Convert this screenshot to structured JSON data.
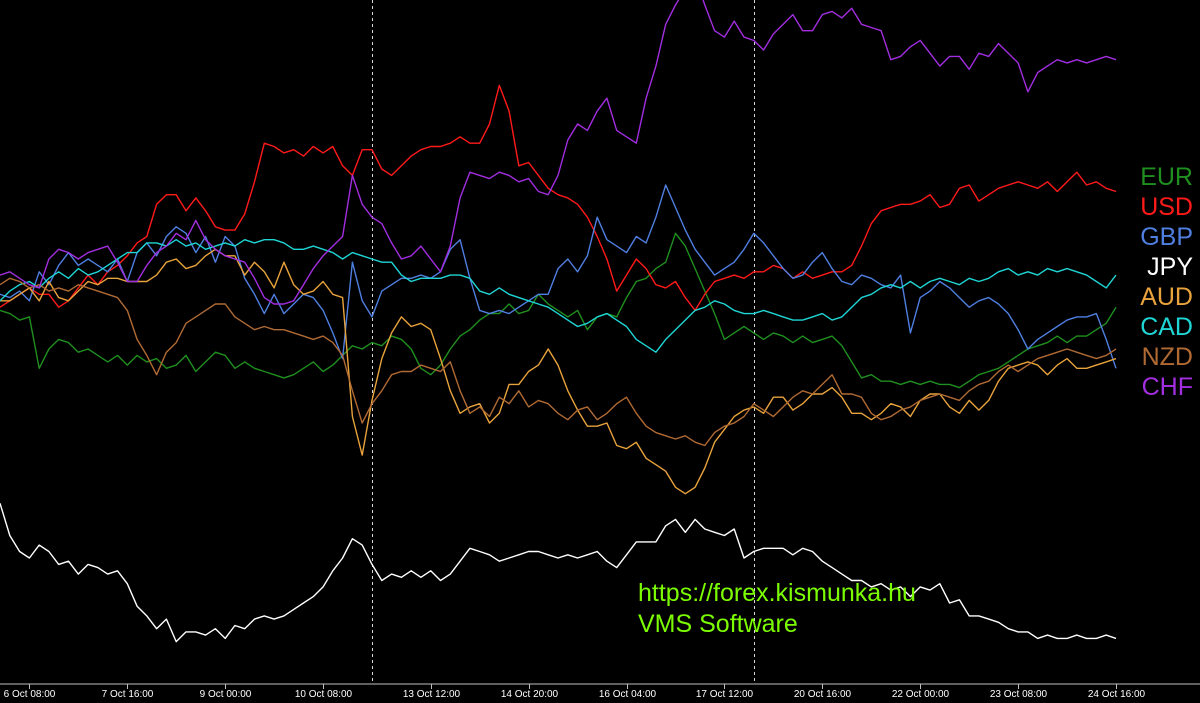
{
  "chart_data": {
    "type": "line",
    "title": "",
    "xlabel": "",
    "ylabel": "",
    "grid": false,
    "legend_position": "right",
    "background": "#000000",
    "x_ticks": [
      "6 Oct 08:00",
      "7 Oct 16:00",
      "9 Oct 00:00",
      "10 Oct 08:00",
      "13 Oct 12:00",
      "14 Oct 20:00",
      "16 Oct 04:00",
      "17 Oct 12:00",
      "20 Oct 16:00",
      "22 Oct 00:00",
      "23 Oct 08:00",
      "24 Oct 16:00"
    ],
    "x_tick_index": [
      3,
      13,
      23,
      33,
      44,
      54,
      64,
      74,
      84,
      94,
      104,
      114
    ],
    "period_separators_index": [
      38,
      77
    ],
    "y_range": [
      -1,
      1
    ],
    "x_count": 115,
    "series": [
      {
        "name": "EUR",
        "color": "#1f8f1f",
        "values": [
          0.05,
          0.04,
          0.02,
          0.03,
          -0.13,
          -0.07,
          -0.04,
          -0.05,
          -0.08,
          -0.07,
          -0.09,
          -0.11,
          -0.09,
          -0.12,
          -0.09,
          -0.11,
          -0.1,
          -0.13,
          -0.12,
          -0.09,
          -0.14,
          -0.11,
          -0.08,
          -0.09,
          -0.13,
          -0.11,
          -0.13,
          -0.14,
          -0.15,
          -0.16,
          -0.15,
          -0.13,
          -0.11,
          -0.14,
          -0.12,
          -0.09,
          -0.06,
          -0.07,
          -0.05,
          -0.06,
          -0.03,
          -0.04,
          -0.07,
          -0.13,
          -0.15,
          -0.12,
          -0.07,
          -0.03,
          -0.01,
          0.02,
          0.04,
          0.04,
          0.07,
          0.04,
          0.05,
          0.1,
          0.07,
          0.05,
          0.03,
          0.05,
          -0.01,
          0.03,
          0.04,
          0.03,
          0.09,
          0.14,
          0.15,
          0.18,
          0.2,
          0.29,
          0.25,
          0.18,
          0.11,
          0.04,
          -0.04,
          -0.02,
          0.0,
          -0.02,
          -0.04,
          -0.02,
          -0.03,
          -0.05,
          -0.03,
          -0.05,
          -0.04,
          -0.03,
          -0.06,
          -0.11,
          -0.16,
          -0.15,
          -0.17,
          -0.17,
          -0.18,
          -0.17,
          -0.18,
          -0.17,
          -0.18,
          -0.18,
          -0.19,
          -0.17,
          -0.15,
          -0.14,
          -0.13,
          -0.11,
          -0.09,
          -0.07,
          -0.06,
          -0.05,
          -0.03,
          -0.05,
          -0.03,
          -0.03,
          -0.01,
          0.01,
          0.06
        ]
      },
      {
        "name": "USD",
        "color": "#ff1a1a",
        "values": [
          0.06,
          0.08,
          0.1,
          0.12,
          0.1,
          0.1,
          0.06,
          0.08,
          0.12,
          0.16,
          0.13,
          0.17,
          0.19,
          0.22,
          0.26,
          0.28,
          0.38,
          0.41,
          0.41,
          0.36,
          0.4,
          0.36,
          0.31,
          0.3,
          0.3,
          0.35,
          0.45,
          0.57,
          0.56,
          0.54,
          0.55,
          0.53,
          0.56,
          0.54,
          0.56,
          0.5,
          0.47,
          0.55,
          0.55,
          0.49,
          0.47,
          0.5,
          0.53,
          0.55,
          0.56,
          0.56,
          0.57,
          0.59,
          0.57,
          0.57,
          0.63,
          0.75,
          0.67,
          0.5,
          0.51,
          0.47,
          0.43,
          0.41,
          0.4,
          0.38,
          0.34,
          0.28,
          0.21,
          0.11,
          0.16,
          0.21,
          0.18,
          0.13,
          0.12,
          0.14,
          0.09,
          0.05,
          0.1,
          0.14,
          0.15,
          0.16,
          0.15,
          0.17,
          0.17,
          0.19,
          0.18,
          0.15,
          0.17,
          0.15,
          0.16,
          0.17,
          0.17,
          0.19,
          0.25,
          0.32,
          0.36,
          0.37,
          0.38,
          0.38,
          0.39,
          0.41,
          0.37,
          0.38,
          0.43,
          0.44,
          0.39,
          0.41,
          0.43,
          0.44,
          0.45,
          0.44,
          0.43,
          0.45,
          0.42,
          0.45,
          0.48,
          0.44,
          0.45,
          0.43,
          0.42
        ]
      },
      {
        "name": "GBP",
        "color": "#4f7fe0",
        "values": [
          0.1,
          0.09,
          0.11,
          0.08,
          0.17,
          0.13,
          0.19,
          0.23,
          0.19,
          0.21,
          0.19,
          0.17,
          0.21,
          0.14,
          0.23,
          0.26,
          0.22,
          0.28,
          0.31,
          0.29,
          0.23,
          0.28,
          0.2,
          0.28,
          0.25,
          0.15,
          0.1,
          0.04,
          0.1,
          0.04,
          0.07,
          0.1,
          0.09,
          0.05,
          -0.02,
          -0.1,
          0.2,
          0.08,
          0.03,
          0.11,
          0.13,
          0.15,
          0.15,
          0.16,
          0.15,
          0.17,
          0.24,
          0.27,
          0.15,
          0.05,
          0.04,
          0.05,
          0.04,
          0.06,
          0.08,
          0.1,
          0.1,
          0.18,
          0.21,
          0.17,
          0.22,
          0.34,
          0.27,
          0.25,
          0.23,
          0.28,
          0.26,
          0.34,
          0.44,
          0.37,
          0.3,
          0.24,
          0.2,
          0.16,
          0.18,
          0.2,
          0.24,
          0.29,
          0.26,
          0.22,
          0.18,
          0.15,
          0.16,
          0.2,
          0.23,
          0.18,
          0.14,
          0.13,
          0.16,
          0.15,
          0.13,
          0.12,
          0.16,
          -0.02,
          0.09,
          0.11,
          0.14,
          0.12,
          0.09,
          0.06,
          0.08,
          0.09,
          0.07,
          0.04,
          -0.01,
          -0.07,
          -0.04,
          -0.02,
          0.0,
          0.02,
          0.03,
          0.03,
          0.04,
          -0.04,
          -0.13
        ]
      },
      {
        "name": "JPY",
        "color": "#ffffff",
        "values": [
          -0.55,
          -0.65,
          -0.7,
          -0.72,
          -0.68,
          -0.7,
          -0.74,
          -0.73,
          -0.77,
          -0.74,
          -0.75,
          -0.77,
          -0.76,
          -0.8,
          -0.87,
          -0.9,
          -0.94,
          -0.91,
          -0.98,
          -0.95,
          -0.95,
          -0.96,
          -0.94,
          -0.97,
          -0.93,
          -0.94,
          -0.91,
          -0.9,
          -0.91,
          -0.9,
          -0.88,
          -0.86,
          -0.84,
          -0.81,
          -0.76,
          -0.72,
          -0.66,
          -0.68,
          -0.74,
          -0.79,
          -0.77,
          -0.78,
          -0.76,
          -0.78,
          -0.76,
          -0.79,
          -0.77,
          -0.73,
          -0.69,
          -0.7,
          -0.71,
          -0.73,
          -0.72,
          -0.71,
          -0.7,
          -0.7,
          -0.71,
          -0.72,
          -0.71,
          -0.72,
          -0.71,
          -0.7,
          -0.73,
          -0.75,
          -0.71,
          -0.67,
          -0.67,
          -0.67,
          -0.62,
          -0.6,
          -0.64,
          -0.6,
          -0.63,
          -0.64,
          -0.65,
          -0.63,
          -0.72,
          -0.7,
          -0.69,
          -0.69,
          -0.69,
          -0.71,
          -0.69,
          -0.7,
          -0.73,
          -0.75,
          -0.77,
          -0.79,
          -0.79,
          -0.81,
          -0.8,
          -0.82,
          -0.81,
          -0.84,
          -0.81,
          -0.82,
          -0.8,
          -0.86,
          -0.85,
          -0.9,
          -0.9,
          -0.91,
          -0.92,
          -0.94,
          -0.95,
          -0.95,
          -0.97,
          -0.96,
          -0.97,
          -0.97,
          -0.96,
          -0.97,
          -0.97,
          -0.96,
          -0.97
        ]
      },
      {
        "name": "AUD",
        "color": "#e8a33c",
        "values": [
          0.08,
          0.08,
          0.1,
          0.12,
          0.08,
          0.14,
          0.09,
          0.08,
          0.11,
          0.14,
          0.13,
          0.15,
          0.15,
          0.14,
          0.14,
          0.14,
          0.16,
          0.2,
          0.21,
          0.18,
          0.19,
          0.22,
          0.24,
          0.22,
          0.22,
          0.16,
          0.2,
          0.17,
          0.12,
          0.2,
          0.13,
          0.1,
          0.11,
          0.14,
          0.1,
          0.09,
          -0.28,
          -0.4,
          -0.23,
          -0.1,
          -0.02,
          0.03,
          0.0,
          0.01,
          -0.01,
          -0.1,
          -0.2,
          -0.27,
          -0.25,
          -0.24,
          -0.3,
          -0.27,
          -0.18,
          -0.18,
          -0.14,
          -0.12,
          -0.07,
          -0.12,
          -0.2,
          -0.26,
          -0.31,
          -0.31,
          -0.3,
          -0.37,
          -0.38,
          -0.36,
          -0.41,
          -0.43,
          -0.45,
          -0.5,
          -0.52,
          -0.5,
          -0.44,
          -0.36,
          -0.32,
          -0.28,
          -0.26,
          -0.25,
          -0.27,
          -0.22,
          -0.22,
          -0.26,
          -0.24,
          -0.21,
          -0.21,
          -0.19,
          -0.22,
          -0.27,
          -0.27,
          -0.29,
          -0.27,
          -0.24,
          -0.25,
          -0.28,
          -0.23,
          -0.21,
          -0.21,
          -0.25,
          -0.27,
          -0.23,
          -0.26,
          -0.23,
          -0.17,
          -0.13,
          -0.12,
          -0.11,
          -0.12,
          -0.15,
          -0.12,
          -0.1,
          -0.13,
          -0.13,
          -0.12,
          -0.11,
          -0.1
        ]
      },
      {
        "name": "CAD",
        "color": "#1fd5d5",
        "values": [
          0.08,
          0.11,
          0.13,
          0.14,
          0.12,
          0.15,
          0.17,
          0.15,
          0.18,
          0.16,
          0.17,
          0.19,
          0.21,
          0.23,
          0.23,
          0.26,
          0.26,
          0.25,
          0.27,
          0.25,
          0.26,
          0.24,
          0.25,
          0.26,
          0.25,
          0.27,
          0.26,
          0.27,
          0.27,
          0.26,
          0.24,
          0.24,
          0.25,
          0.24,
          0.23,
          0.21,
          0.23,
          0.22,
          0.21,
          0.2,
          0.2,
          0.16,
          0.14,
          0.15,
          0.15,
          0.15,
          0.16,
          0.16,
          0.15,
          0.11,
          0.1,
          0.12,
          0.1,
          0.09,
          0.08,
          0.07,
          0.06,
          0.04,
          0.02,
          0.0,
          0.01,
          0.03,
          0.04,
          0.02,
          0.0,
          -0.04,
          -0.06,
          -0.08,
          -0.04,
          -0.01,
          0.02,
          0.05,
          0.06,
          0.08,
          0.07,
          0.05,
          0.04,
          0.04,
          0.05,
          0.04,
          0.03,
          0.02,
          0.02,
          0.03,
          0.04,
          0.02,
          0.03,
          0.06,
          0.09,
          0.1,
          0.12,
          0.13,
          0.12,
          0.14,
          0.12,
          0.14,
          0.15,
          0.14,
          0.13,
          0.15,
          0.14,
          0.15,
          0.17,
          0.18,
          0.16,
          0.17,
          0.16,
          0.18,
          0.17,
          0.18,
          0.17,
          0.16,
          0.14,
          0.12,
          0.16
        ]
      },
      {
        "name": "NZD",
        "color": "#b06a34",
        "values": [
          0.13,
          0.15,
          0.14,
          0.12,
          0.13,
          0.11,
          0.12,
          0.11,
          0.13,
          0.12,
          0.11,
          0.1,
          0.09,
          0.05,
          -0.04,
          -0.09,
          -0.15,
          -0.08,
          -0.05,
          0.01,
          0.03,
          0.05,
          0.07,
          0.07,
          0.03,
          0.01,
          -0.01,
          0.0,
          -0.01,
          -0.01,
          -0.02,
          -0.03,
          -0.04,
          -0.03,
          -0.05,
          -0.09,
          -0.2,
          -0.3,
          -0.24,
          -0.2,
          -0.15,
          -0.14,
          -0.14,
          -0.12,
          -0.13,
          -0.14,
          -0.11,
          -0.2,
          -0.27,
          -0.25,
          -0.28,
          -0.22,
          -0.24,
          -0.2,
          -0.25,
          -0.23,
          -0.24,
          -0.27,
          -0.29,
          -0.26,
          -0.25,
          -0.29,
          -0.27,
          -0.24,
          -0.22,
          -0.27,
          -0.31,
          -0.33,
          -0.34,
          -0.35,
          -0.34,
          -0.36,
          -0.37,
          -0.33,
          -0.31,
          -0.3,
          -0.28,
          -0.24,
          -0.26,
          -0.28,
          -0.25,
          -0.22,
          -0.2,
          -0.21,
          -0.18,
          -0.15,
          -0.21,
          -0.21,
          -0.22,
          -0.27,
          -0.29,
          -0.28,
          -0.26,
          -0.25,
          -0.23,
          -0.22,
          -0.21,
          -0.22,
          -0.23,
          -0.2,
          -0.18,
          -0.17,
          -0.14,
          -0.12,
          -0.14,
          -0.12,
          -0.1,
          -0.09,
          -0.08,
          -0.07,
          -0.08,
          -0.09,
          -0.1,
          -0.09,
          -0.07
        ]
      },
      {
        "name": "CHF",
        "color": "#a22ee0",
        "values": [
          0.16,
          0.17,
          0.15,
          0.13,
          0.12,
          0.21,
          0.24,
          0.23,
          0.21,
          0.23,
          0.24,
          0.25,
          0.2,
          0.14,
          0.14,
          0.19,
          0.23,
          0.25,
          0.29,
          0.27,
          0.33,
          0.27,
          0.24,
          0.22,
          0.21,
          0.2,
          0.15,
          0.09,
          0.07,
          0.07,
          0.08,
          0.13,
          0.18,
          0.22,
          0.25,
          0.28,
          0.47,
          0.38,
          0.34,
          0.32,
          0.26,
          0.21,
          0.22,
          0.25,
          0.21,
          0.17,
          0.25,
          0.4,
          0.48,
          0.47,
          0.46,
          0.48,
          0.47,
          0.45,
          0.46,
          0.42,
          0.41,
          0.47,
          0.58,
          0.63,
          0.61,
          0.67,
          0.71,
          0.61,
          0.59,
          0.57,
          0.71,
          0.81,
          0.94,
          1.0,
          1.05,
          1.09,
          1.0,
          0.92,
          0.9,
          0.95,
          0.9,
          0.89,
          0.86,
          0.91,
          0.94,
          0.97,
          0.92,
          0.92,
          0.97,
          0.98,
          0.96,
          0.99,
          0.94,
          0.93,
          0.92,
          0.83,
          0.84,
          0.87,
          0.89,
          0.85,
          0.81,
          0.84,
          0.84,
          0.8,
          0.85,
          0.84,
          0.88,
          0.85,
          0.82,
          0.73,
          0.79,
          0.81,
          0.83,
          0.82,
          0.83,
          0.82,
          0.83,
          0.84,
          0.83
        ]
      }
    ]
  },
  "watermark": {
    "line1": "https://forex.kismunka.hu",
    "line2": "VMS Software"
  }
}
